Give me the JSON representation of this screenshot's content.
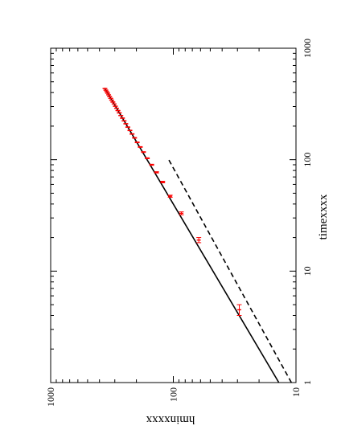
{
  "chart_data": {
    "type": "scatter",
    "orientation": "rotated-90-clockwise",
    "title": "",
    "xlabel": "timexxxx",
    "ylabel": "hminxxxx",
    "xscale": "log",
    "yscale": "log",
    "xlim": [
      1,
      1000
    ],
    "ylim": [
      10,
      1000
    ],
    "x_ticks": [
      {
        "value": 1,
        "label": "1"
      },
      {
        "value": 10,
        "label": "10"
      },
      {
        "value": 100,
        "label": "100"
      },
      {
        "value": 1000,
        "label": "1000"
      }
    ],
    "y_ticks": [
      {
        "value": 10,
        "label": "10"
      },
      {
        "value": 100,
        "label": "100"
      },
      {
        "value": 1000,
        "label": "1000"
      }
    ],
    "grid": false,
    "legend": "none",
    "series": [
      {
        "kind": "points-with-error-bars",
        "color": "#ff0000",
        "x": [
          4.5,
          19,
          33,
          47,
          63,
          77,
          90,
          103,
          117,
          130,
          143,
          157,
          170,
          183,
          196,
          210,
          223,
          236,
          249,
          263,
          276,
          289,
          302,
          316,
          329,
          342,
          355,
          368,
          382,
          395,
          408,
          421,
          435
        ],
        "y": [
          29,
          62,
          86,
          106,
          122,
          137,
          150,
          163,
          175,
          186,
          197,
          207,
          217,
          226,
          235,
          244,
          252,
          260,
          268,
          276,
          283,
          290,
          297,
          304,
          311,
          318,
          324,
          331,
          337,
          343,
          349,
          355,
          361
        ],
        "x_err": [
          0.5,
          1.0,
          1.0,
          1.0,
          1.0,
          1.0,
          1.0,
          1.0,
          1.0,
          1.0,
          1.0,
          1.0,
          1.0,
          1.0,
          1.0,
          1.0,
          1.0,
          1.0,
          1.0,
          1.0,
          1.0,
          1.0,
          1.0,
          1.0,
          1.0,
          1.0,
          1.0,
          1.0,
          1.0,
          1.0,
          1.0,
          1.0,
          1.0
        ]
      },
      {
        "kind": "line",
        "style": "solid",
        "color": "#000000",
        "x": [
          1,
          440
        ],
        "y": [
          13.8,
          363
        ]
      },
      {
        "kind": "line",
        "style": "dashed",
        "color": "#000000",
        "x": [
          1,
          100
        ],
        "y": [
          10.9,
          109
        ]
      }
    ]
  }
}
